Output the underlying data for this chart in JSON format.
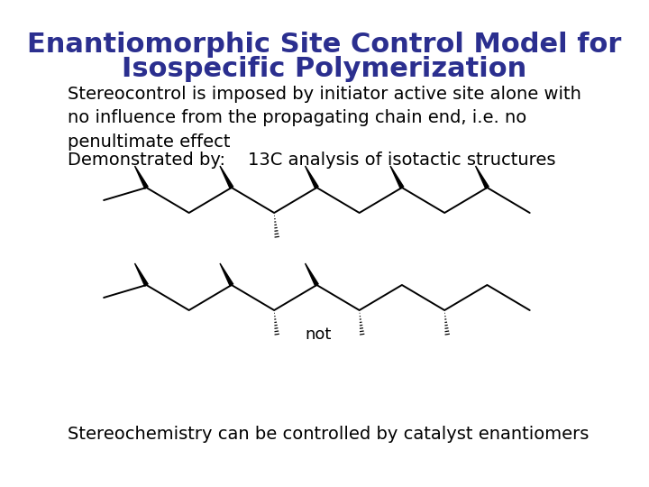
{
  "title_line1": "Enantiomorphic Site Control Model for",
  "title_line2": "Isospecific Polymerization",
  "title_color": "#2b2f8f",
  "title_fontsize": 22,
  "body_text1": "Stereocontrol is imposed by initiator active site alone with\nno influence from the propagating chain end, i.e. no\npenultimate effect",
  "body_text2": "Demonstrated by:    13C analysis of isotactic structures",
  "body_text3": "Stereochemistry can be controlled by catalyst enantiomers",
  "body_fontsize": 14,
  "bg_color": "#ffffff",
  "text_color": "#000000"
}
